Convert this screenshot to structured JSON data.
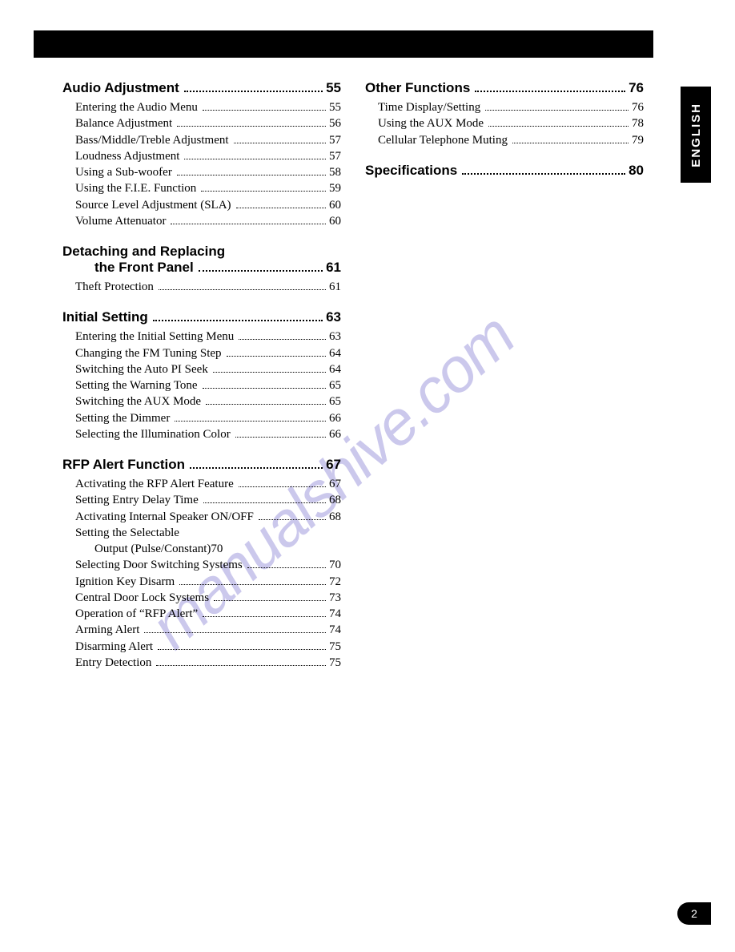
{
  "language_tab": "ENGLISH",
  "page_number": "2",
  "watermark": "manualshive.com",
  "left_column": [
    {
      "title": "Audio Adjustment",
      "page": "55",
      "entries": [
        {
          "text": "Entering the Audio Menu",
          "page": "55"
        },
        {
          "text": "Balance Adjustment",
          "page": "56"
        },
        {
          "text": "Bass/Middle/Treble Adjustment",
          "page": "57"
        },
        {
          "text": "Loudness Adjustment",
          "page": "57"
        },
        {
          "text": "Using a Sub-woofer",
          "page": "58"
        },
        {
          "text": "Using the F.I.E. Function",
          "page": "59"
        },
        {
          "text": "Source Level Adjustment (SLA)",
          "page": "60"
        },
        {
          "text": "Volume Attenuator",
          "page": "60"
        }
      ]
    },
    {
      "title_line1": "Detaching and Replacing",
      "title_line2": "the Front Panel",
      "page": "61",
      "entries": [
        {
          "text": "Theft Protection",
          "page": "61"
        }
      ]
    },
    {
      "title": "Initial Setting",
      "page": "63",
      "entries": [
        {
          "text": "Entering the Initial Setting Menu",
          "page": "63"
        },
        {
          "text": "Changing the FM Tuning Step",
          "page": "64"
        },
        {
          "text": "Switching the Auto PI Seek",
          "page": "64"
        },
        {
          "text": "Setting the Warning Tone",
          "page": "65"
        },
        {
          "text": "Switching the AUX Mode",
          "page": "65"
        },
        {
          "text": "Setting the Dimmer",
          "page": "66"
        },
        {
          "text": "Selecting the Illumination Color",
          "page": "66"
        }
      ]
    },
    {
      "title": "RFP Alert Function",
      "page": "67",
      "entries": [
        {
          "text": "Activating the RFP Alert Feature",
          "page": "67"
        },
        {
          "text": "Setting Entry Delay Time",
          "page": "68"
        },
        {
          "text": "Activating Internal Speaker ON/OFF",
          "page": "68"
        },
        {
          "multiline": true,
          "line1": "Setting the Selectable",
          "line2": "Output (Pulse/Constant)",
          "page": "70"
        },
        {
          "text": "Selecting Door Switching Systems",
          "page": "70"
        },
        {
          "text": "Ignition Key Disarm",
          "page": "72"
        },
        {
          "text": "Central Door Lock Systems",
          "page": "73"
        },
        {
          "text": "Operation of “RFP Alert”",
          "page": "74"
        },
        {
          "text": "Arming Alert",
          "page": "74"
        },
        {
          "text": "Disarming Alert",
          "page": "75"
        },
        {
          "text": "Entry Detection",
          "page": "75"
        }
      ]
    }
  ],
  "right_column": [
    {
      "title": "Other Functions",
      "page": "76",
      "entries": [
        {
          "text": "Time Display/Setting",
          "page": "76"
        },
        {
          "text": "Using the AUX Mode",
          "page": "78"
        },
        {
          "text": "Cellular Telephone Muting",
          "page": "79"
        }
      ]
    },
    {
      "title": "Specifications",
      "page": "80",
      "entries": []
    }
  ]
}
